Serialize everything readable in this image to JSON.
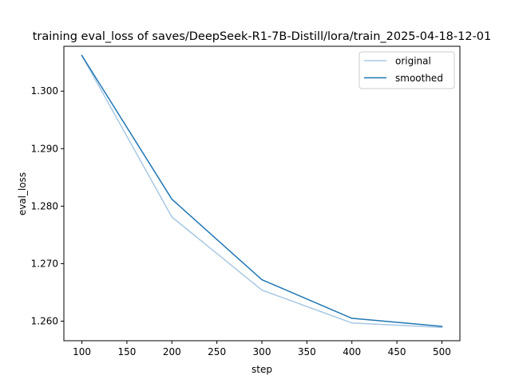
{
  "chart_data": {
    "type": "line",
    "title": "training eval_loss of saves/DeepSeek-R1-7B-Distill/lora/train_2025-04-18-12-01",
    "xlabel": "step",
    "ylabel": "eval_loss",
    "xlim": [
      80,
      520
    ],
    "ylim": [
      1.2566,
      1.3078
    ],
    "xticks": [
      100,
      150,
      200,
      250,
      300,
      350,
      400,
      450,
      500
    ],
    "yticks": [
      1.26,
      1.27,
      1.28,
      1.29,
      1.3
    ],
    "ytick_labels": [
      "1.260",
      "1.270",
      "1.280",
      "1.290",
      "1.300"
    ],
    "grid": false,
    "legend_position": "top-right",
    "series": [
      {
        "name": "original",
        "color": "#a6c8e2",
        "x": [
          100,
          200,
          300,
          400,
          500
        ],
        "y": [
          1.3062,
          1.2781,
          1.2654,
          1.2597,
          1.2589
        ]
      },
      {
        "name": "smoothed",
        "color": "#1f77b4",
        "x": [
          100,
          200,
          300,
          400,
          500
        ],
        "y": [
          1.3062,
          1.2812,
          1.2672,
          1.2605,
          1.2591
        ]
      }
    ]
  }
}
